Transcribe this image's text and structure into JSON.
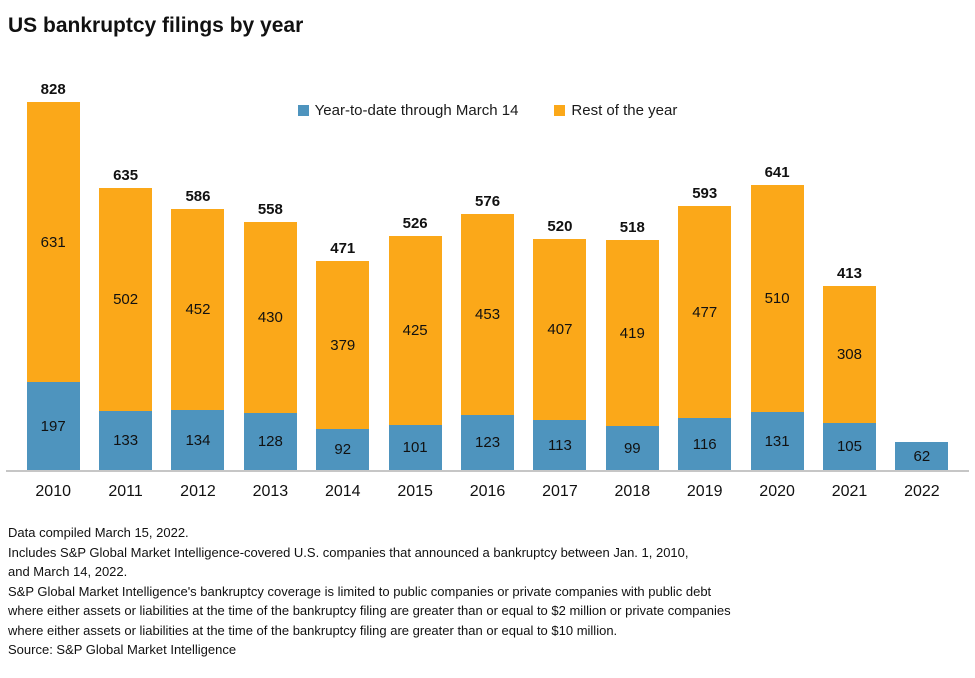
{
  "title": "US bankruptcy filings by year",
  "legend": {
    "items": [
      {
        "label": "Year-to-date through March 14",
        "color": "#4E94BE"
      },
      {
        "label": "Rest of the year",
        "color": "#FBA819"
      }
    ]
  },
  "chart_data": {
    "type": "bar",
    "stacked": true,
    "title": "US bankruptcy filings by year",
    "categories": [
      "2010",
      "2011",
      "2012",
      "2013",
      "2014",
      "2015",
      "2016",
      "2017",
      "2018",
      "2019",
      "2020",
      "2021",
      "2022"
    ],
    "series": [
      {
        "name": "Year-to-date through March 14",
        "color": "#4E94BE",
        "values": [
          197,
          133,
          134,
          128,
          92,
          101,
          123,
          113,
          99,
          116,
          131,
          105,
          62
        ]
      },
      {
        "name": "Rest of the year",
        "color": "#FBA819",
        "values": [
          631,
          502,
          452,
          430,
          379,
          425,
          453,
          407,
          419,
          477,
          510,
          308,
          0
        ]
      }
    ],
    "totals": [
      828,
      635,
      586,
      558,
      471,
      526,
      576,
      520,
      518,
      593,
      641,
      413,
      62
    ],
    "ylim": [
      0,
      828
    ],
    "grid": false,
    "legend_position": "top-center",
    "data_labels": true,
    "axis_line_color": "#C6C6C6"
  },
  "footnotes": [
    "Data compiled March 15, 2022.",
    "Includes S&P Global Market Intelligence-covered U.S. companies that announced a bankruptcy between Jan. 1, 2010,",
    "and March 14, 2022.",
    "S&P Global Market Intelligence's bankruptcy coverage is limited to public companies or private companies with public debt",
    "where either assets or liabilities at the time of the bankruptcy filing are greater than or equal to $2 million or private companies",
    "where either assets or liabilities at the time of the bankruptcy filing are greater than or equal to $10 million.",
    "Source: S&P Global Market Intelligence"
  ]
}
